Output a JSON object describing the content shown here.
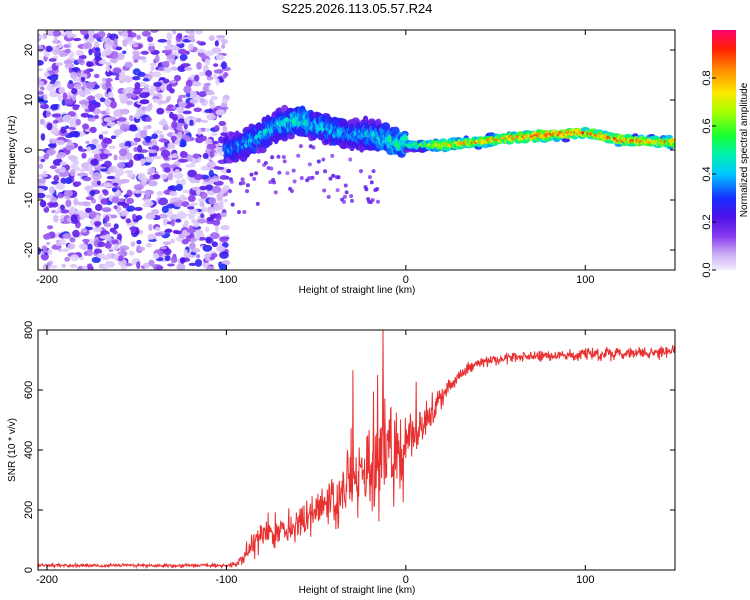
{
  "figure_title": "S225.2026.113.05.57.R24",
  "chart_data": [
    {
      "type": "heatmap",
      "name": "spectrogram",
      "xlabel": "Height of straight line (km)",
      "ylabel": "Frequency (Hz)",
      "xlim": [
        -205,
        150
      ],
      "ylim": [
        -24,
        24
      ],
      "xticks": [
        -200,
        -100,
        0,
        100
      ],
      "yticks": [
        -20,
        -10,
        0,
        10,
        20
      ],
      "noise_region_x": [
        -205,
        -100
      ],
      "signal_track": {
        "x": [
          -100,
          -90,
          -80,
          -70,
          -60,
          -50,
          -40,
          -30,
          -20,
          -10,
          0,
          10,
          20,
          40,
          60,
          80,
          100,
          120,
          150
        ],
        "freq": [
          0,
          1,
          3,
          5,
          6,
          5,
          4,
          3,
          3,
          2,
          1,
          1,
          1,
          1.5,
          2.5,
          3,
          3.5,
          2,
          1.5
        ],
        "peak_amplitude": [
          0.35,
          0.4,
          0.45,
          0.45,
          0.5,
          0.45,
          0.45,
          0.4,
          0.45,
          0.5,
          0.55,
          0.6,
          0.8,
          0.85,
          0.9,
          0.95,
          0.9,
          0.9,
          0.85
        ]
      },
      "colorbar": {
        "label": "Normalized spectral amplitude",
        "range": [
          0,
          1
        ],
        "ticks": [
          "0.0",
          "0.2",
          "0.4",
          "0.6",
          "0.8"
        ]
      }
    },
    {
      "type": "line",
      "name": "snr",
      "xlabel": "Height of straight line (km)",
      "ylabel": "SNR (10 * v/v)",
      "xlim": [
        -205,
        150
      ],
      "ylim": [
        0,
        800
      ],
      "xticks": [
        -200,
        -100,
        0,
        100
      ],
      "yticks": [
        0,
        200,
        400,
        600,
        800
      ],
      "color": "#e83030",
      "series": [
        {
          "name": "SNR",
          "x": [
            -205,
            -150,
            -100,
            -95,
            -90,
            -85,
            -80,
            -70,
            -60,
            -50,
            -40,
            -30,
            -20,
            -10,
            -5,
            0,
            10,
            20,
            30,
            40,
            60,
            80,
            100,
            120,
            150
          ],
          "mean": [
            15,
            15,
            15,
            20,
            40,
            80,
            110,
            130,
            160,
            190,
            230,
            280,
            340,
            390,
            400,
            410,
            480,
            580,
            650,
            690,
            710,
            715,
            720,
            720,
            730
          ],
          "noise": [
            8,
            8,
            8,
            15,
            35,
            60,
            70,
            70,
            80,
            90,
            110,
            150,
            220,
            250,
            220,
            150,
            80,
            50,
            30,
            25,
            25,
            25,
            25,
            25,
            25
          ]
        }
      ]
    }
  ]
}
